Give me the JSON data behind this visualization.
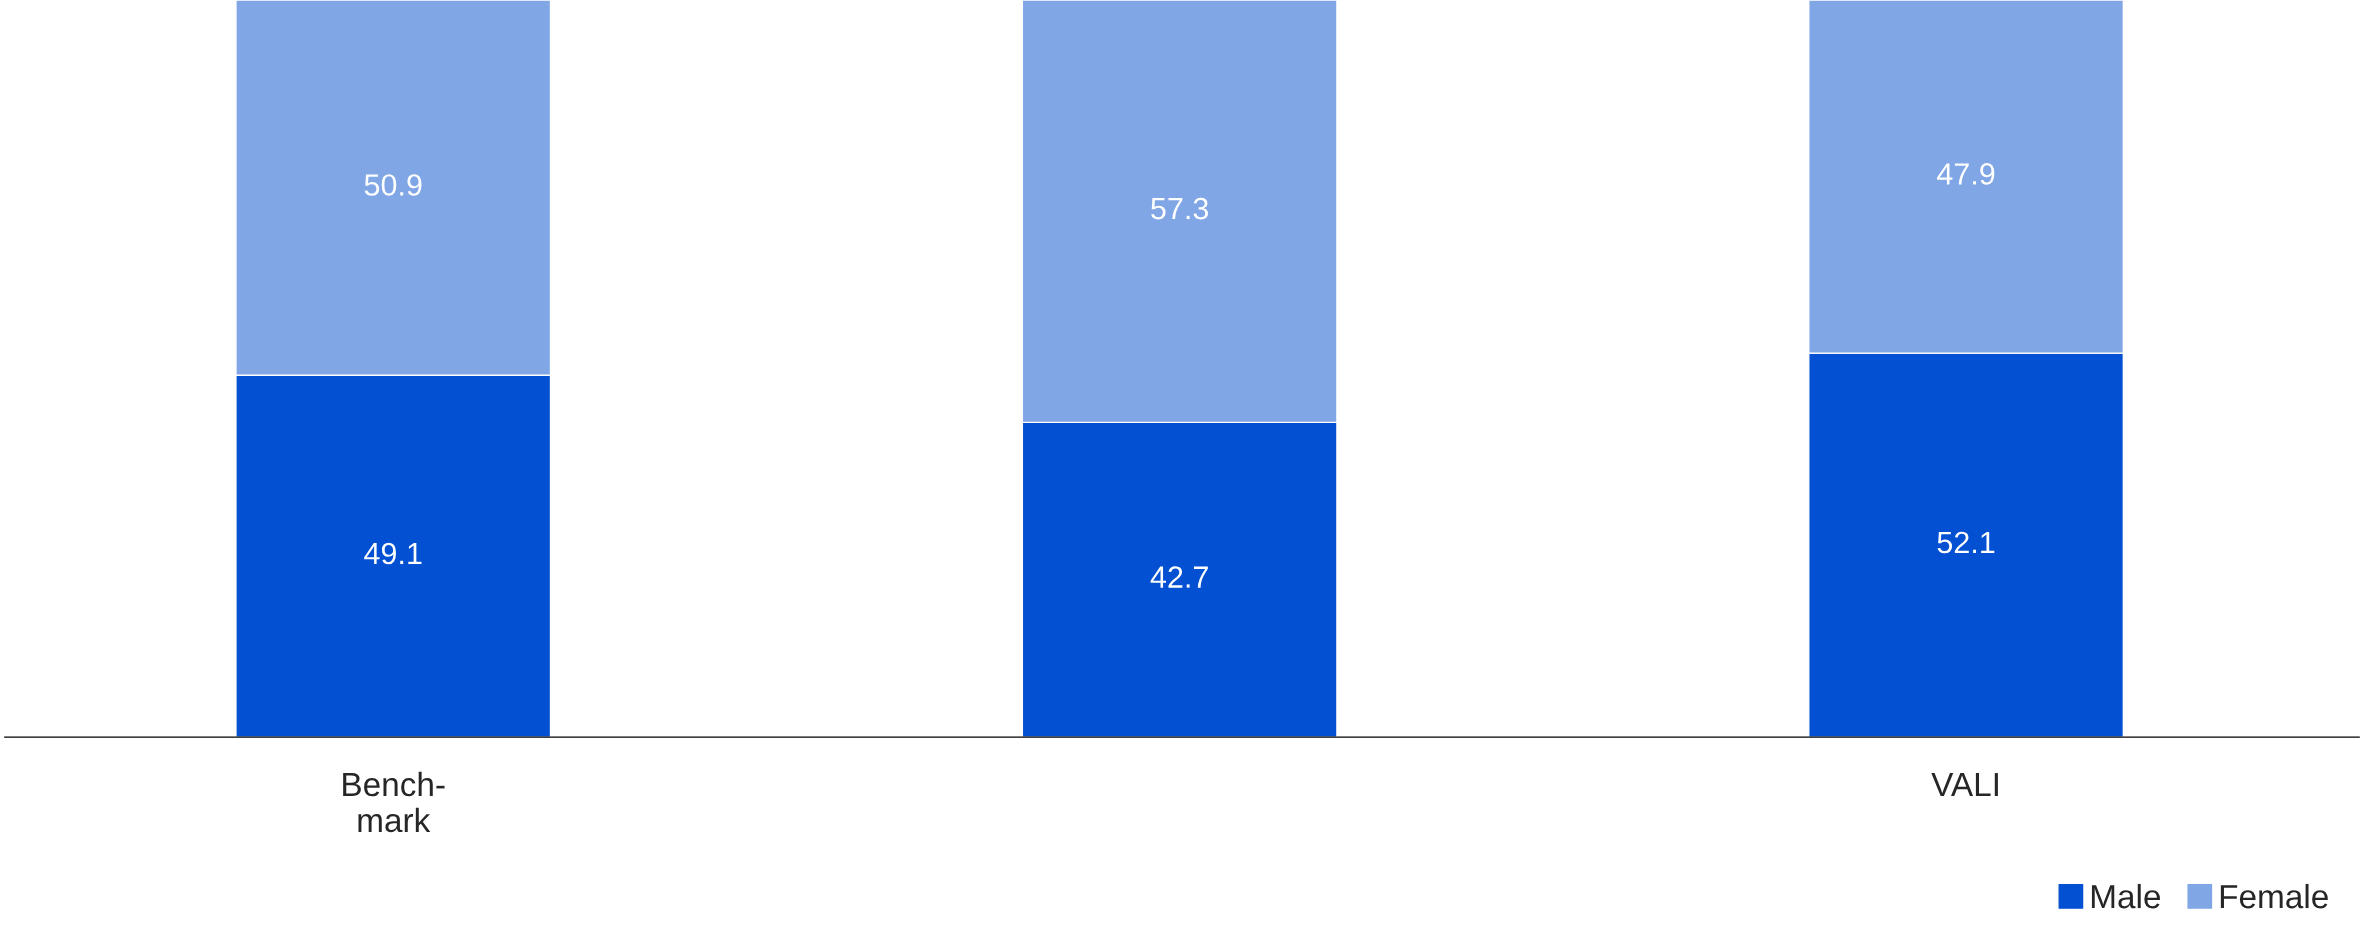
{
  "chart_data": {
    "type": "bar",
    "stacked": true,
    "categories": [
      "Bench-\nmark",
      null,
      "VALI"
    ],
    "series": [
      {
        "name": "Male",
        "color": "#0350d2",
        "values": [
          49.1,
          42.7,
          52.1
        ]
      },
      {
        "name": "Female",
        "color": "#80a6e6",
        "values": [
          50.9,
          57.3,
          47.9
        ]
      }
    ],
    "ylim": [
      0,
      100
    ],
    "tick_labels": "x",
    "data_labels": true,
    "legend": "bottom right"
  }
}
